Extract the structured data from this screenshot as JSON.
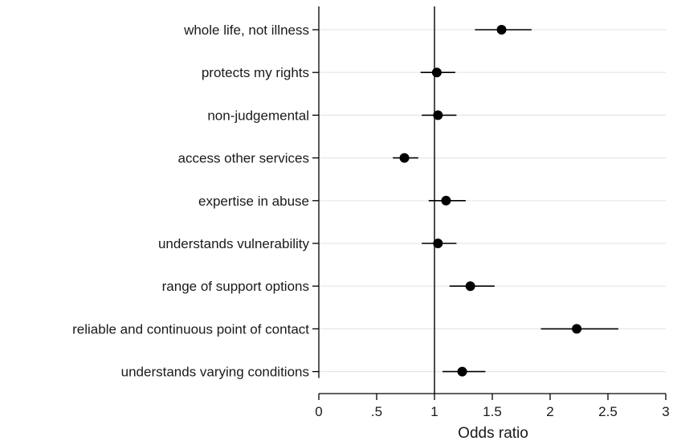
{
  "chart_data": {
    "type": "scatter",
    "subtype": "forest-plot",
    "title": "",
    "xlabel": "Odds ratio",
    "ylabel": "",
    "xlim": [
      0,
      3
    ],
    "xticks": [
      0,
      0.5,
      1,
      1.5,
      2,
      2.5,
      3
    ],
    "xtick_labels": [
      "0",
      ".5",
      "1",
      "1.5",
      "2",
      "2.5",
      "3"
    ],
    "reference_line": 1,
    "grid": "horizontal",
    "colors": {
      "point": "#000000",
      "ci": "#000000",
      "grid": "#e6e6e6",
      "axis": "#000000"
    },
    "items": [
      {
        "label": "whole life, not illness",
        "or": 1.58,
        "ci_low": 1.35,
        "ci_high": 1.84
      },
      {
        "label": "protects my rights",
        "or": 1.02,
        "ci_low": 0.88,
        "ci_high": 1.18
      },
      {
        "label": "non-judgemental",
        "or": 1.03,
        "ci_low": 0.89,
        "ci_high": 1.19
      },
      {
        "label": "access other services",
        "or": 0.74,
        "ci_low": 0.64,
        "ci_high": 0.86
      },
      {
        "label": "expertise in abuse",
        "or": 1.1,
        "ci_low": 0.95,
        "ci_high": 1.27
      },
      {
        "label": "understands vulnerability",
        "or": 1.03,
        "ci_low": 0.89,
        "ci_high": 1.19
      },
      {
        "label": "range of support options",
        "or": 1.31,
        "ci_low": 1.13,
        "ci_high": 1.52
      },
      {
        "label": "reliable and continuous point of contact",
        "or": 2.23,
        "ci_low": 1.92,
        "ci_high": 2.59
      },
      {
        "label": "understands varying conditions",
        "or": 1.24,
        "ci_low": 1.07,
        "ci_high": 1.44
      }
    ]
  }
}
